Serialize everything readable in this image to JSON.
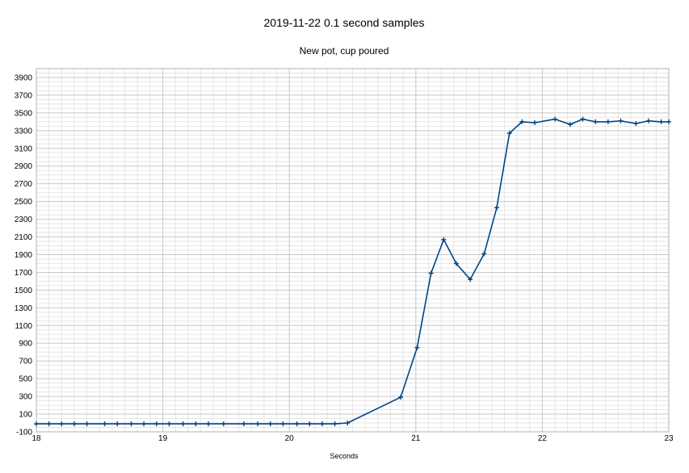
{
  "chart_data": {
    "type": "line",
    "title": "2019-11-22 0.1 second samples",
    "subtitle": "New pot, cup poured",
    "xlabel": "Seconds",
    "ylabel": "",
    "xlim": [
      18,
      23
    ],
    "ylim": [
      -100,
      4000
    ],
    "xticks": [
      18,
      19,
      20,
      21,
      22,
      23
    ],
    "yticks": [
      -100,
      100,
      300,
      500,
      700,
      900,
      1100,
      1300,
      1500,
      1700,
      1900,
      2100,
      2300,
      2500,
      2700,
      2900,
      3100,
      3300,
      3500,
      3700,
      3900
    ],
    "x_minor_step": 0.1,
    "y_minor_step": 50,
    "grid": true,
    "legend": "none",
    "line_color": "#004586",
    "series": [
      {
        "x": [
          18.0,
          18.1,
          18.2,
          18.3,
          18.4,
          18.54,
          18.64,
          18.75,
          18.85,
          18.95,
          19.05,
          19.16,
          19.26,
          19.36,
          19.48,
          19.64,
          19.75,
          19.85,
          19.95,
          20.06,
          20.16,
          20.26,
          20.36,
          20.46,
          20.88,
          21.01,
          21.12,
          21.22,
          21.32,
          21.43,
          21.54,
          21.64,
          21.74,
          21.84,
          21.94,
          22.1,
          22.22,
          22.32,
          22.42,
          22.52,
          22.62,
          22.74,
          22.84,
          22.94,
          23.0
        ],
        "y": [
          -10,
          -10,
          -10,
          -10,
          -10,
          -10,
          -10,
          -10,
          -10,
          -10,
          -10,
          -10,
          -10,
          -10,
          -10,
          -10,
          -10,
          -10,
          -10,
          -10,
          -10,
          -10,
          -10,
          0,
          290,
          850,
          1690,
          2070,
          1800,
          1620,
          1910,
          2430,
          3270,
          3400,
          3390,
          3430,
          3370,
          3430,
          3400,
          3400,
          3410,
          3380,
          3410,
          3400,
          3400
        ]
      }
    ]
  }
}
